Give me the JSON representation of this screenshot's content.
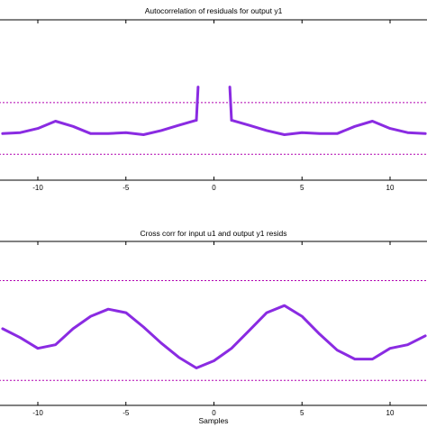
{
  "chart_data": [
    {
      "type": "line",
      "title": "Autocorrelation of residuals for output y1",
      "xlabel": "",
      "xlim": [
        -12.2,
        12.2
      ],
      "ylim": [
        -0.5,
        1.05
      ],
      "xticks": [
        -10,
        -5,
        0,
        5,
        10
      ],
      "confidence_band": [
        -0.25,
        0.25
      ],
      "color": "#8a2be2",
      "conf_color": "#b000b0",
      "segments": [
        {
          "x": [
            -12,
            -11,
            -10,
            -9,
            -8,
            -7,
            -6,
            -5,
            -4,
            -3,
            -2,
            -1
          ],
          "y": [
            -0.05,
            -0.04,
            0.0,
            0.07,
            0.02,
            -0.05,
            -0.05,
            -0.04,
            -0.06,
            -0.02,
            0.03,
            0.08
          ]
        },
        {
          "x": [
            -1,
            -0.9
          ],
          "y": [
            0.08,
            0.4
          ]
        },
        {
          "x": [
            0.9,
            1
          ],
          "y": [
            0.4,
            0.08
          ]
        },
        {
          "x": [
            1,
            2,
            3,
            4,
            5,
            6,
            7,
            8,
            9,
            10,
            11,
            12
          ],
          "y": [
            0.08,
            0.03,
            -0.02,
            -0.06,
            -0.04,
            -0.05,
            -0.05,
            0.02,
            0.07,
            0.0,
            -0.04,
            -0.05
          ]
        }
      ]
    },
    {
      "type": "line",
      "title": "Cross corr for input u1 and output y1 resids",
      "xlabel": "Samples",
      "xlim": [
        -12.2,
        12.2
      ],
      "ylim": [
        -0.42,
        0.5
      ],
      "xticks": [
        -10,
        -5,
        0,
        5,
        10
      ],
      "confidence_band": [
        -0.28,
        0.28
      ],
      "color": "#8a2be2",
      "conf_color": "#b000b0",
      "segments": [
        {
          "x": [
            -12,
            -11,
            -10,
            -9,
            -8,
            -7,
            -6,
            -5,
            -4,
            -3,
            -2,
            -1,
            0,
            1,
            2,
            3,
            4,
            5,
            6,
            7,
            8,
            9,
            10,
            11,
            12
          ],
          "y": [
            0.01,
            -0.04,
            -0.1,
            -0.08,
            0.01,
            0.08,
            0.12,
            0.1,
            0.02,
            -0.07,
            -0.15,
            -0.21,
            -0.17,
            -0.1,
            0.0,
            0.1,
            0.14,
            0.08,
            -0.02,
            -0.11,
            -0.16,
            -0.16,
            -0.1,
            -0.08,
            -0.03
          ]
        }
      ]
    }
  ]
}
